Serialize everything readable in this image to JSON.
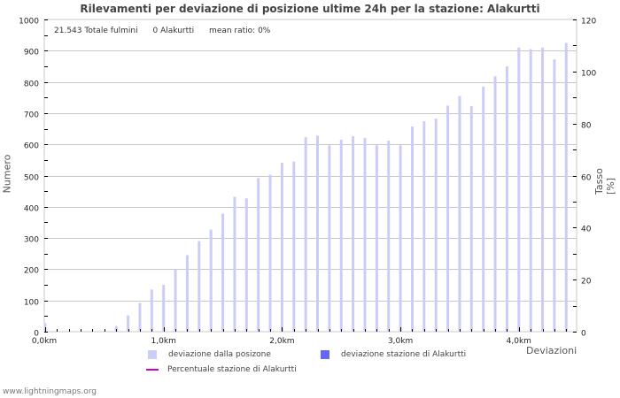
{
  "chart": {
    "title": "Rilevamenti per deviazione di posizione ultime 24h per la stazione: Alakurtti",
    "stats": {
      "total": "21.543 Totale fulmini",
      "station": "0 Alakurtti",
      "ratio": "mean ratio: 0%"
    },
    "ylabel_left": "Numero",
    "ylabel_right": "Tasso [%]",
    "xlabel": "Deviazioni",
    "legend": {
      "item1": "deviazione dalla posizone",
      "item2": "deviazione stazione di Alakurtti",
      "item3": "Percentuale stazione di Alakurtti"
    },
    "footer": "www.lightningmaps.org",
    "colors": {
      "bar_all": "#ccccf8",
      "bar_station": "#6666ee",
      "line_pct": "#cc00cc",
      "grid": "#c8c8c8"
    }
  },
  "chart_data": {
    "type": "bar",
    "title": "Rilevamenti per deviazione di posizione ultime 24h per la stazione: Alakurtti",
    "xlabel": "Deviazioni",
    "ylabel": "Numero",
    "ylabel_right": "Tasso [%]",
    "ylim": [
      0,
      1000
    ],
    "ylim_right": [
      0,
      120
    ],
    "yticks": [
      0,
      100,
      200,
      300,
      400,
      500,
      600,
      700,
      800,
      900,
      1000
    ],
    "yticks_right": [
      0,
      20,
      40,
      60,
      80,
      100,
      120
    ],
    "xticks": [
      "0,0km",
      "1,0km",
      "2,0km",
      "3,0km",
      "4,0km"
    ],
    "x_step_km": 0.1,
    "grid": true,
    "legend_position": "bottom",
    "series": [
      {
        "name": "deviazione dalla posizone",
        "values": [
          27,
          0,
          0,
          0,
          0,
          2,
          18,
          52,
          92,
          135,
          150,
          200,
          245,
          290,
          327,
          378,
          432,
          427,
          492,
          503,
          541,
          545,
          623,
          628,
          597,
          615,
          626,
          620,
          597,
          612,
          597,
          657,
          674,
          682,
          724,
          755,
          722,
          785,
          818,
          850,
          910,
          905,
          910,
          872,
          925
        ]
      },
      {
        "name": "deviazione stazione di Alakurtti",
        "values": [
          0,
          0,
          0,
          0,
          0,
          0,
          0,
          0,
          0,
          0,
          0,
          0,
          0,
          0,
          0,
          0,
          0,
          0,
          0,
          0,
          0,
          0,
          0,
          0,
          0,
          0,
          0,
          0,
          0,
          0,
          0,
          0,
          0,
          0,
          0,
          0,
          0,
          0,
          0,
          0,
          0,
          0,
          0,
          0,
          0
        ]
      },
      {
        "name": "Percentuale stazione di Alakurtti",
        "type": "line",
        "values": []
      }
    ]
  }
}
